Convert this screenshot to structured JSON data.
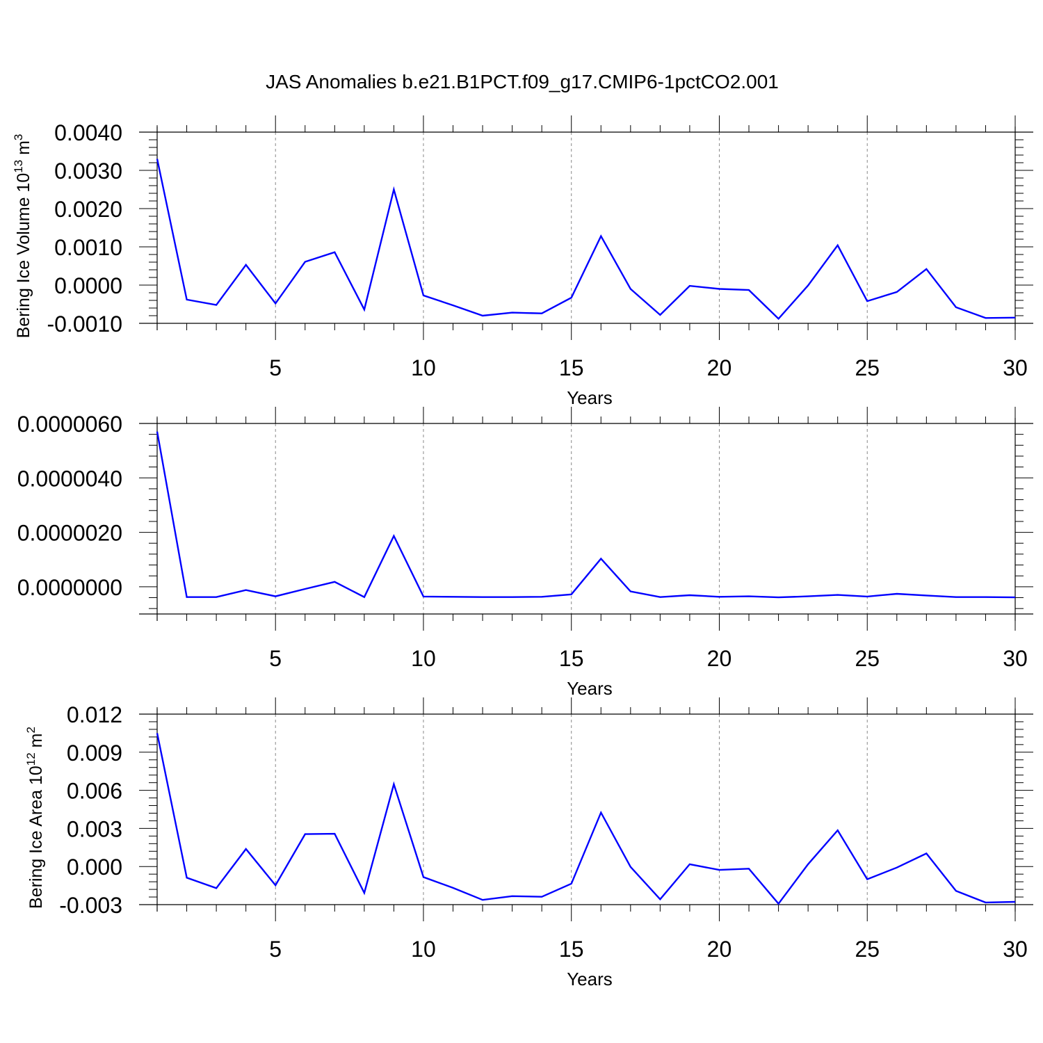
{
  "title": "JAS Anomalies b.e21.B1PCT.f09_g17.CMIP6-1pctCO2.001",
  "colors": {
    "line": "#0000ff",
    "axis": "#000000",
    "grid": "#888888"
  },
  "chart_data": [
    {
      "type": "line",
      "ylabel": "Bering Ice Volume 10",
      "ylabel_exp": "13",
      "ylabel_unit": " m",
      "ylabel_unit_exp": "3",
      "xlabel": "Years",
      "xlim": [
        1,
        30
      ],
      "ylim": [
        -0.001,
        0.004
      ],
      "yticks": [
        -0.001,
        0.0,
        0.001,
        0.002,
        0.003,
        0.004
      ],
      "ytick_labels": [
        "-0.0010",
        "0.0000",
        "0.0010",
        "0.0020",
        "0.0030",
        "0.0040"
      ],
      "xticks": [
        5,
        10,
        15,
        20,
        25,
        30
      ],
      "xtick_labels": [
        "5",
        "10",
        "15",
        "20",
        "25",
        "30"
      ],
      "x": [
        1,
        2,
        3,
        4,
        5,
        6,
        7,
        8,
        9,
        10,
        11,
        12,
        13,
        14,
        15,
        16,
        17,
        18,
        19,
        20,
        21,
        22,
        23,
        24,
        25,
        26,
        27,
        28,
        29,
        30
      ],
      "values": [
        0.0033,
        -0.00038,
        -0.00052,
        0.00053,
        -0.00048,
        0.00061,
        0.00086,
        -0.00064,
        0.0025,
        -0.00027,
        -0.00053,
        -0.0008,
        -0.00072,
        -0.00074,
        -0.00033,
        0.00128,
        -0.0001,
        -0.00078,
        -2e-05,
        -0.0001,
        -0.00013,
        -0.00088,
        -1e-05,
        0.00104,
        -0.00042,
        -0.00018,
        0.00042,
        -0.00058,
        -0.00086,
        -0.00085
      ]
    },
    {
      "type": "line",
      "ylabel": "",
      "xlabel": "Years",
      "xlim": [
        1,
        30
      ],
      "ylim": [
        -1e-06,
        6e-06
      ],
      "yticks": [
        0.0,
        2e-06,
        4e-06,
        6e-06
      ],
      "ytick_labels": [
        "0.0000000",
        "0.0000020",
        "0.0000040",
        "0.0000060"
      ],
      "xticks": [
        5,
        10,
        15,
        20,
        25,
        30
      ],
      "xtick_labels": [
        "5",
        "10",
        "15",
        "20",
        "25",
        "30"
      ],
      "x": [
        1,
        2,
        3,
        4,
        5,
        6,
        7,
        8,
        9,
        10,
        11,
        12,
        13,
        14,
        15,
        16,
        17,
        18,
        19,
        20,
        21,
        22,
        23,
        24,
        25,
        26,
        27,
        28,
        29,
        30
      ],
      "values": [
        5.7e-06,
        -3.8e-07,
        -3.8e-07,
        -1.2e-07,
        -3.5e-07,
        -8e-08,
        1.8e-07,
        -3.8e-07,
        1.87e-06,
        -3.6e-07,
        -3.7e-07,
        -3.8e-07,
        -3.8e-07,
        -3.7e-07,
        -2.8e-07,
        1.03e-06,
        -1.7e-07,
        -3.8e-07,
        -3.1e-07,
        -3.7e-07,
        -3.5e-07,
        -3.9e-07,
        -3.5e-07,
        -3e-07,
        -3.6e-07,
        -2.6e-07,
        -3.2e-07,
        -3.8e-07,
        -3.8e-07,
        -3.9e-07
      ]
    },
    {
      "type": "line",
      "ylabel": "Bering Ice Area 10",
      "ylabel_exp": "12",
      "ylabel_unit": " m",
      "ylabel_unit_exp": "2",
      "xlabel": "Years",
      "xlim": [
        1,
        30
      ],
      "ylim": [
        -0.003,
        0.012
      ],
      "yticks": [
        -0.003,
        0.0,
        0.003,
        0.006,
        0.009,
        0.012
      ],
      "ytick_labels": [
        "-0.003",
        "0.000",
        "0.003",
        "0.006",
        "0.009",
        "0.012"
      ],
      "xticks": [
        5,
        10,
        15,
        20,
        25,
        30
      ],
      "xtick_labels": [
        "5",
        "10",
        "15",
        "20",
        "25",
        "30"
      ],
      "x": [
        1,
        2,
        3,
        4,
        5,
        6,
        7,
        8,
        9,
        10,
        11,
        12,
        13,
        14,
        15,
        16,
        17,
        18,
        19,
        20,
        21,
        22,
        23,
        24,
        25,
        26,
        27,
        28,
        29,
        30
      ],
      "values": [
        0.0105,
        -0.00088,
        -0.0017,
        0.00138,
        -0.00147,
        0.00255,
        0.00258,
        -0.00208,
        0.00648,
        -0.00083,
        -0.00168,
        -0.00263,
        -0.00233,
        -0.00238,
        -0.00135,
        0.00425,
        -3e-05,
        -0.00258,
        0.00018,
        -0.00027,
        -0.00017,
        -0.00293,
        0.00018,
        0.00285,
        -0.001,
        -8e-05,
        0.00103,
        -0.00192,
        -0.00283,
        -0.00278
      ]
    }
  ]
}
